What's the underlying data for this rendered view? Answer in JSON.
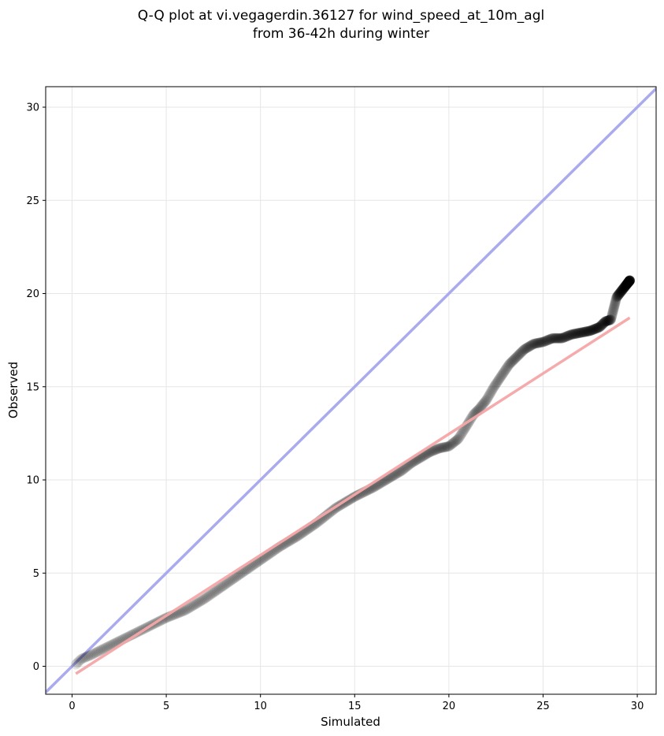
{
  "chart_data": {
    "type": "scatter",
    "title_lines": [
      "Q-Q plot at vi.vegagerdin.36127 for wind_speed_at_10m_agl",
      "from 36-42h during winter"
    ],
    "xlabel": "Simulated",
    "ylabel": "Observed",
    "xlim": [
      -1.4,
      31.0
    ],
    "ylim": [
      -1.5,
      31.1
    ],
    "x_ticks": [
      0,
      5,
      10,
      15,
      20,
      25,
      30
    ],
    "y_ticks": [
      0,
      5,
      10,
      15,
      20,
      25,
      30
    ],
    "grid": true,
    "colors": {
      "points": "#000000",
      "identity_line": "#aaaaee",
      "fit_line": "#f4a6a6",
      "grid": "#e6e6e6"
    },
    "identity_line": {
      "x": [
        -1.4,
        31.0
      ],
      "y": [
        -1.4,
        31.0
      ]
    },
    "fit_line": {
      "x": [
        0.2,
        29.6
      ],
      "y": [
        -0.4,
        18.7
      ]
    },
    "quantile_curve": {
      "x": [
        0.2,
        0.5,
        1,
        2,
        3,
        4,
        5,
        6,
        7,
        8,
        9,
        10,
        11,
        12,
        13,
        14,
        15,
        16,
        17,
        17.5,
        18,
        18.5,
        19,
        19.5,
        20,
        20.5,
        21,
        21.3,
        21.6,
        22,
        22.4,
        22.8,
        23.2,
        23.6,
        24,
        24.5,
        25,
        25.5,
        26,
        26.5,
        27,
        27.5,
        28,
        28.3,
        28.6,
        28.9,
        29.6
      ],
      "y": [
        0.1,
        0.4,
        0.6,
        1.1,
        1.6,
        2.1,
        2.6,
        3.0,
        3.6,
        4.3,
        5.0,
        5.7,
        6.4,
        7.0,
        7.7,
        8.5,
        9.1,
        9.6,
        10.2,
        10.5,
        10.9,
        11.2,
        11.5,
        11.7,
        11.8,
        12.2,
        13.0,
        13.5,
        13.8,
        14.3,
        15.0,
        15.6,
        16.2,
        16.6,
        17.0,
        17.3,
        17.4,
        17.6,
        17.6,
        17.8,
        17.9,
        18.0,
        18.2,
        18.5,
        18.6,
        19.8,
        20.7
      ]
    },
    "sample_count": 700
  }
}
